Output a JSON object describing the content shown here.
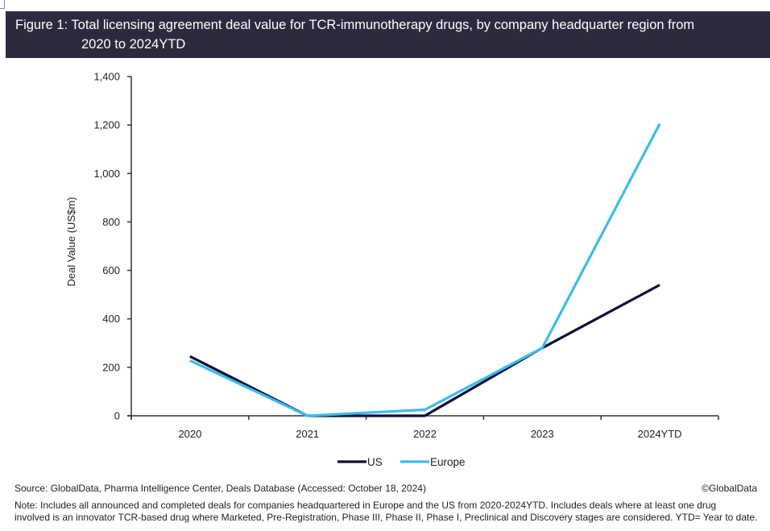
{
  "title": {
    "line1": "Figure 1: Total licensing agreement deal value for TCR-immunotherapy drugs, by company headquarter region from",
    "line2": "2020 to 2024YTD"
  },
  "colors": {
    "title_bg": "#2d2a3e",
    "us": "#0f1033",
    "europe": "#3bbcf0",
    "axis": "#333333"
  },
  "chart_data": {
    "type": "line",
    "title": "Total licensing agreement deal value for TCR-immunotherapy drugs, by company headquarter region from 2020 to 2024YTD",
    "xlabel": "",
    "ylabel": "Deal Value (US$m)",
    "categories": [
      "2020",
      "2021",
      "2022",
      "2023",
      "2024YTD"
    ],
    "ylim": [
      0,
      1400
    ],
    "yticks": [
      0,
      200,
      400,
      600,
      800,
      1000,
      1200,
      1400
    ],
    "ytick_labels": [
      "0",
      "200",
      "400",
      "600",
      "800",
      "1,000",
      "1,200",
      "1,400"
    ],
    "grid": false,
    "legend_position": "bottom-center",
    "series": [
      {
        "name": "US",
        "color": "#0f1033",
        "values": [
          245,
          0,
          0,
          280,
          540
        ]
      },
      {
        "name": "Europe",
        "color": "#3bbcf0",
        "values": [
          228,
          0,
          25,
          280,
          1205
        ]
      }
    ]
  },
  "footer": {
    "source": "Source: GlobalData, Pharma Intelligence Center, Deals Database (Accessed: October 18, 2024)",
    "copyright": "©GlobalData",
    "note_line1": "Note: Includes all announced and completed deals for companies headquartered in Europe and the US from 2020-2024YTD. Includes deals where at least one drug",
    "note_line2": "involved is an innovator TCR-based drug where Marketed, Pre-Registration, Phase III, Phase II, Phase I, Preclinical and Discovery stages are considered. YTD= Year to date."
  }
}
